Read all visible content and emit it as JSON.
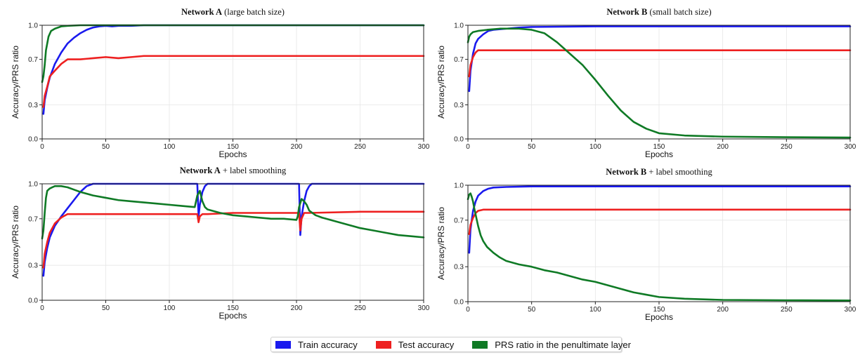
{
  "chart_data": [
    {
      "type": "line",
      "title": "Network A",
      "subtitle": "(large batch size)",
      "xlabel": "Epochs",
      "ylabel": "Accuracy/PRS ratio",
      "xlim": [
        0,
        300
      ],
      "ylim": [
        0,
        1.0
      ],
      "xticks": [
        0,
        50,
        100,
        150,
        200,
        250,
        300
      ],
      "yticks": [
        0.0,
        0.3,
        0.7,
        1.0
      ],
      "grid": true,
      "series": [
        {
          "name": "Train accuracy",
          "color": "#1a1aee",
          "x": [
            1,
            2,
            4,
            6,
            10,
            15,
            20,
            25,
            30,
            35,
            40,
            45,
            50,
            55,
            60,
            70,
            80,
            100,
            150,
            200,
            250,
            300
          ],
          "y": [
            0.22,
            0.34,
            0.45,
            0.54,
            0.66,
            0.76,
            0.84,
            0.89,
            0.93,
            0.96,
            0.98,
            0.99,
            0.995,
            0.99,
            0.995,
            0.995,
            1.0,
            1.0,
            1.0,
            1.0,
            1.0,
            1.0
          ]
        },
        {
          "name": "Test accuracy",
          "color": "#ee2020",
          "x": [
            1,
            2,
            4,
            6,
            10,
            15,
            20,
            30,
            40,
            50,
            60,
            70,
            80,
            90,
            100,
            150,
            200,
            250,
            300
          ],
          "y": [
            0.28,
            0.38,
            0.46,
            0.55,
            0.6,
            0.66,
            0.7,
            0.7,
            0.71,
            0.72,
            0.71,
            0.72,
            0.73,
            0.73,
            0.73,
            0.73,
            0.73,
            0.73,
            0.73
          ]
        },
        {
          "name": "PRS ratio in the penultimate layer",
          "color": "#0f7a25",
          "x": [
            0,
            1,
            2,
            3,
            5,
            7,
            10,
            15,
            20,
            30,
            40,
            50,
            70,
            100,
            150,
            200,
            250,
            300
          ],
          "y": [
            0.5,
            0.55,
            0.65,
            0.78,
            0.9,
            0.95,
            0.97,
            0.99,
            0.995,
            1.0,
            1.0,
            1.0,
            1.0,
            1.0,
            1.0,
            1.0,
            1.0,
            1.0
          ]
        }
      ]
    },
    {
      "type": "line",
      "title": "Network B",
      "subtitle": "(small batch size)",
      "xlabel": "Epochs",
      "ylabel": "Accuracy/PRS ratio",
      "xlim": [
        0,
        300
      ],
      "ylim": [
        0,
        1.0
      ],
      "xticks": [
        0,
        50,
        100,
        150,
        200,
        250,
        300
      ],
      "yticks": [
        0.0,
        0.3,
        0.7,
        1.0
      ],
      "grid": true,
      "series": [
        {
          "name": "Train accuracy",
          "color": "#1a1aee",
          "x": [
            1,
            2,
            4,
            6,
            8,
            12,
            16,
            20,
            30,
            40,
            50,
            100,
            150,
            200,
            250,
            300
          ],
          "y": [
            0.42,
            0.6,
            0.75,
            0.84,
            0.88,
            0.92,
            0.95,
            0.96,
            0.97,
            0.98,
            0.985,
            0.99,
            0.99,
            0.99,
            0.99,
            0.99
          ]
        },
        {
          "name": "Test accuracy",
          "color": "#ee2020",
          "x": [
            1,
            2,
            4,
            6,
            8,
            12,
            20,
            50,
            100,
            150,
            200,
            250,
            300
          ],
          "y": [
            0.55,
            0.65,
            0.72,
            0.76,
            0.78,
            0.78,
            0.78,
            0.78,
            0.78,
            0.78,
            0.78,
            0.78,
            0.78
          ]
        },
        {
          "name": "PRS ratio in the penultimate layer",
          "color": "#0f7a25",
          "x": [
            0,
            1,
            2,
            4,
            8,
            15,
            25,
            40,
            50,
            60,
            70,
            80,
            90,
            100,
            110,
            120,
            130,
            140,
            150,
            170,
            200,
            250,
            300
          ],
          "y": [
            0.85,
            0.9,
            0.92,
            0.94,
            0.95,
            0.96,
            0.97,
            0.97,
            0.96,
            0.93,
            0.85,
            0.75,
            0.65,
            0.52,
            0.38,
            0.25,
            0.15,
            0.09,
            0.05,
            0.03,
            0.02,
            0.015,
            0.012
          ]
        }
      ]
    },
    {
      "type": "line",
      "title": "Network A",
      "subtitle": "+ label smoothing",
      "xlabel": "Epochs",
      "ylabel": "Accuracy/PRS ratio",
      "xlim": [
        0,
        300
      ],
      "ylim": [
        0,
        1.0
      ],
      "xticks": [
        0,
        50,
        100,
        150,
        200,
        250,
        300
      ],
      "yticks": [
        0.0,
        0.3,
        0.7,
        1.0
      ],
      "grid": true,
      "series": [
        {
          "name": "Train accuracy",
          "color": "#1a1aee",
          "x": [
            1,
            2,
            4,
            6,
            10,
            15,
            20,
            25,
            30,
            35,
            40,
            120,
            122,
            123,
            124,
            126,
            128,
            130,
            200,
            202,
            203,
            204,
            206,
            208,
            210,
            212,
            300
          ],
          "y": [
            0.21,
            0.33,
            0.45,
            0.54,
            0.64,
            0.72,
            0.79,
            0.86,
            0.93,
            0.98,
            1.0,
            1.0,
            1.0,
            0.72,
            0.82,
            0.93,
            0.98,
            1.0,
            1.0,
            1.0,
            0.56,
            0.72,
            0.85,
            0.94,
            0.98,
            1.0,
            1.0
          ]
        },
        {
          "name": "Test accuracy",
          "color": "#ee2020",
          "x": [
            1,
            2,
            4,
            6,
            10,
            15,
            20,
            40,
            60,
            80,
            100,
            120,
            122,
            123,
            124,
            126,
            130,
            150,
            200,
            202,
            203,
            204,
            206,
            210,
            250,
            300
          ],
          "y": [
            0.28,
            0.4,
            0.5,
            0.58,
            0.66,
            0.71,
            0.74,
            0.74,
            0.74,
            0.74,
            0.74,
            0.74,
            0.74,
            0.67,
            0.72,
            0.74,
            0.74,
            0.75,
            0.75,
            0.75,
            0.6,
            0.7,
            0.75,
            0.75,
            0.76,
            0.76
          ]
        },
        {
          "name": "PRS ratio in the penultimate layer",
          "color": "#0f7a25",
          "x": [
            0,
            1,
            2,
            3,
            4,
            6,
            8,
            10,
            15,
            20,
            25,
            30,
            40,
            50,
            60,
            70,
            80,
            90,
            100,
            110,
            120,
            122,
            124,
            126,
            128,
            130,
            140,
            150,
            160,
            170,
            180,
            190,
            200,
            201,
            202,
            204,
            206,
            208,
            210,
            215,
            220,
            230,
            240,
            250,
            260,
            270,
            280,
            290,
            300
          ],
          "y": [
            0.53,
            0.6,
            0.75,
            0.88,
            0.94,
            0.96,
            0.97,
            0.98,
            0.98,
            0.97,
            0.95,
            0.93,
            0.9,
            0.88,
            0.86,
            0.85,
            0.84,
            0.83,
            0.82,
            0.81,
            0.8,
            0.9,
            0.94,
            0.85,
            0.8,
            0.78,
            0.75,
            0.73,
            0.72,
            0.71,
            0.7,
            0.7,
            0.69,
            0.72,
            0.8,
            0.87,
            0.85,
            0.82,
            0.77,
            0.73,
            0.71,
            0.68,
            0.65,
            0.62,
            0.6,
            0.58,
            0.56,
            0.55,
            0.54
          ]
        }
      ]
    },
    {
      "type": "line",
      "title": "Network B",
      "subtitle": "+ label smoothing",
      "xlabel": "Epochs",
      "ylabel": "Accuracy/PRS ratio",
      "xlim": [
        0,
        300
      ],
      "ylim": [
        0,
        1.0
      ],
      "xticks": [
        0,
        50,
        100,
        150,
        200,
        250,
        300
      ],
      "yticks": [
        0.0,
        0.3,
        0.7,
        1.0
      ],
      "grid": true,
      "series": [
        {
          "name": "Train accuracy",
          "color": "#1a1aee",
          "x": [
            1,
            2,
            4,
            6,
            8,
            12,
            16,
            20,
            30,
            50,
            100,
            150,
            200,
            250,
            300
          ],
          "y": [
            0.42,
            0.62,
            0.78,
            0.86,
            0.91,
            0.95,
            0.97,
            0.98,
            0.985,
            0.99,
            0.99,
            0.99,
            0.99,
            0.99,
            0.99
          ]
        },
        {
          "name": "Test accuracy",
          "color": "#ee2020",
          "x": [
            1,
            2,
            4,
            6,
            8,
            12,
            20,
            50,
            100,
            150,
            200,
            250,
            300
          ],
          "y": [
            0.58,
            0.66,
            0.72,
            0.76,
            0.78,
            0.79,
            0.79,
            0.79,
            0.79,
            0.79,
            0.79,
            0.79,
            0.79
          ]
        },
        {
          "name": "PRS ratio in the penultimate layer",
          "color": "#0f7a25",
          "x": [
            0,
            1,
            2,
            3,
            4,
            5,
            6,
            8,
            10,
            12,
            15,
            20,
            25,
            30,
            40,
            50,
            60,
            70,
            80,
            90,
            100,
            110,
            120,
            130,
            140,
            150,
            170,
            200,
            250,
            300
          ],
          "y": [
            0.88,
            0.92,
            0.93,
            0.9,
            0.86,
            0.8,
            0.75,
            0.65,
            0.57,
            0.52,
            0.47,
            0.42,
            0.38,
            0.35,
            0.32,
            0.3,
            0.27,
            0.25,
            0.22,
            0.19,
            0.17,
            0.14,
            0.11,
            0.08,
            0.06,
            0.04,
            0.025,
            0.015,
            0.012,
            0.01
          ]
        }
      ]
    }
  ],
  "legend": {
    "items": [
      {
        "label": "Train accuracy",
        "color": "#1a1aee"
      },
      {
        "label": "Test accuracy",
        "color": "#ee2020"
      },
      {
        "label": "PRS ratio in the penultimate layer",
        "color": "#0f7a25"
      }
    ]
  }
}
